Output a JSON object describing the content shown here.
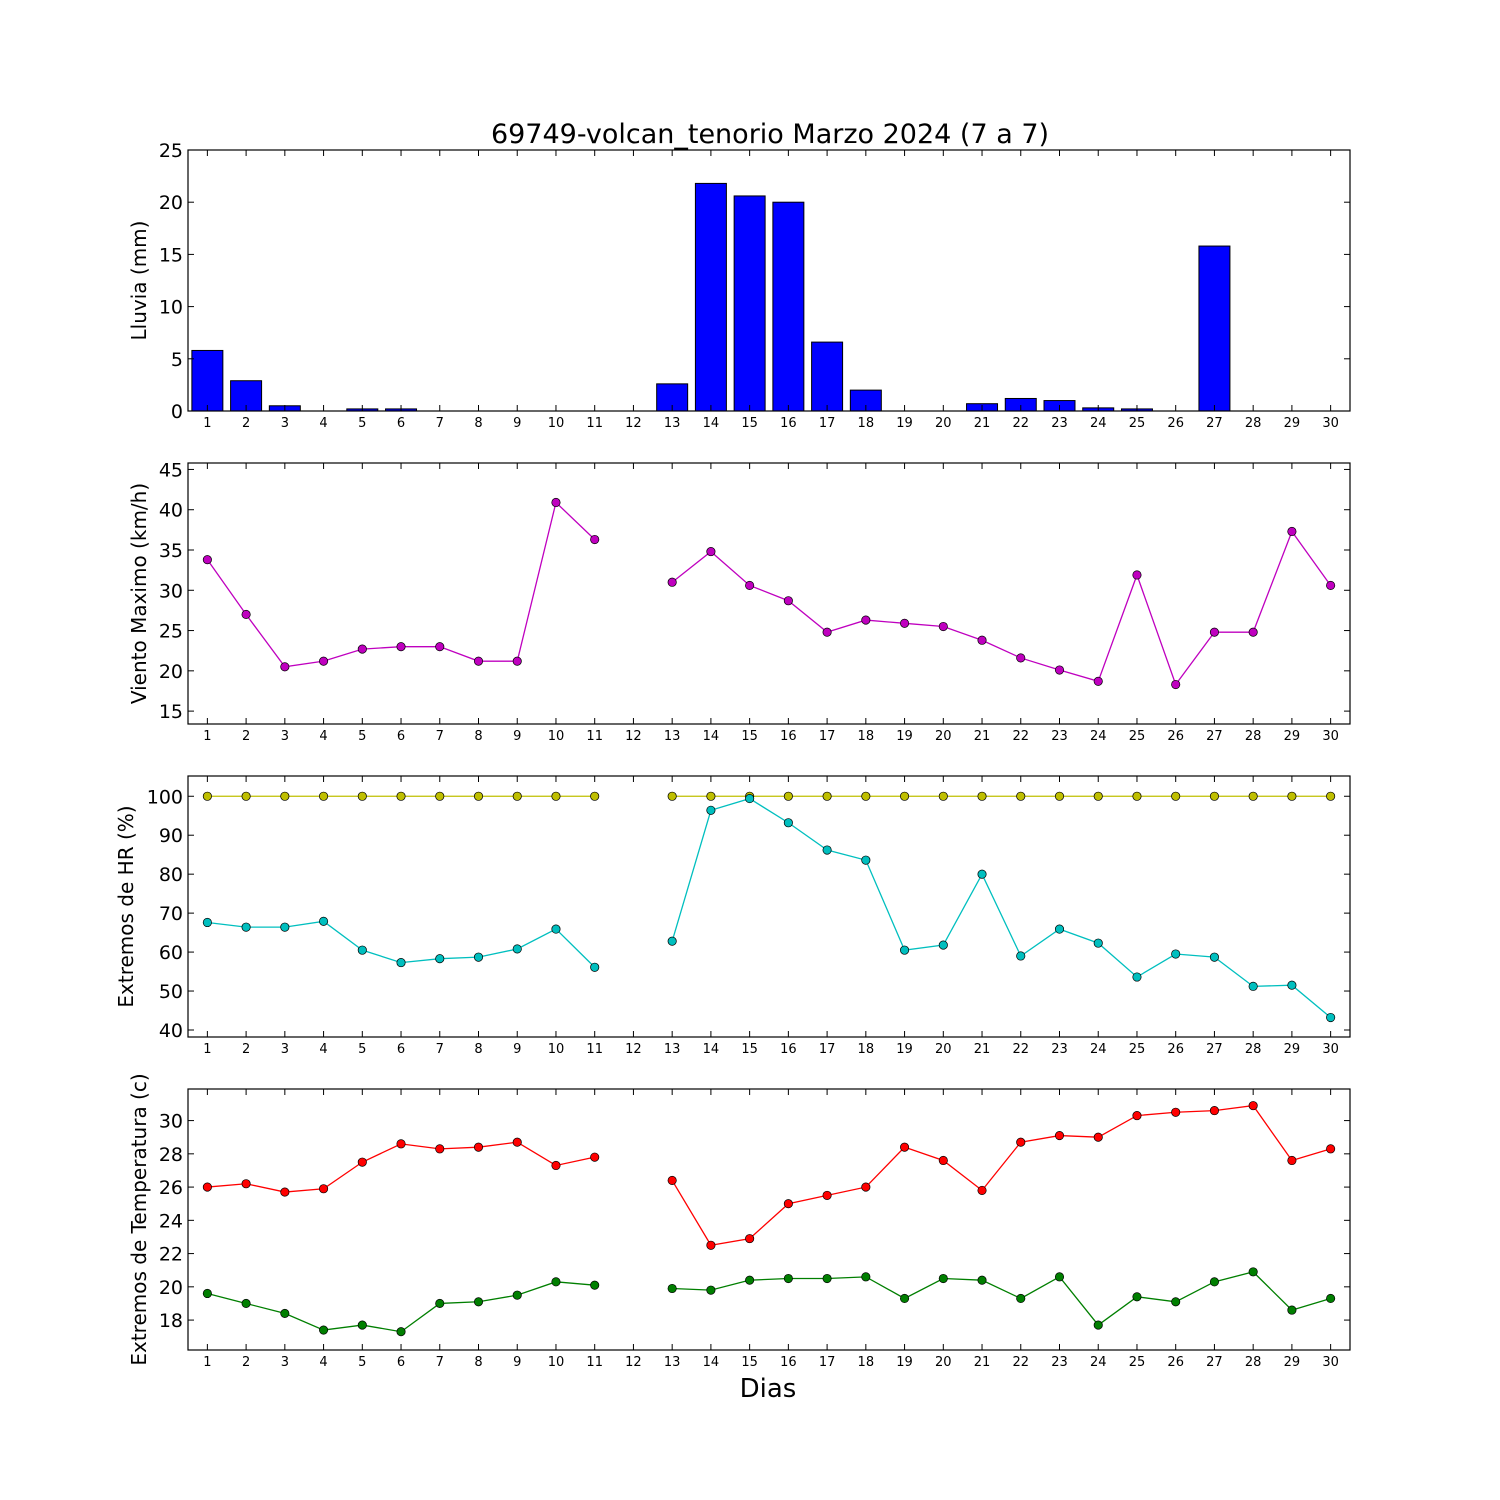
{
  "title": "69749-volcan_tenorio Marzo 2024  (7 a 7)",
  "xlabel": "Dias",
  "chart_data": [
    {
      "type": "bar",
      "ylabel": "Lluvia (mm)",
      "ylim": [
        0,
        25
      ],
      "yticks": [
        0,
        5,
        10,
        15,
        20,
        25
      ],
      "x": [
        1,
        2,
        3,
        4,
        5,
        6,
        7,
        8,
        9,
        10,
        11,
        12,
        13,
        14,
        15,
        16,
        17,
        18,
        19,
        20,
        21,
        22,
        23,
        24,
        25,
        26,
        27,
        28,
        29,
        30
      ],
      "series": [
        {
          "color": "#0000ff",
          "values": [
            5.8,
            2.9,
            0.5,
            0,
            0.2,
            0.2,
            0,
            0,
            0,
            0,
            0,
            0,
            2.6,
            21.8,
            20.6,
            20.0,
            6.6,
            2.0,
            0,
            0,
            0.7,
            1.2,
            1.0,
            0.3,
            0.2,
            0,
            15.8,
            0,
            0,
            0
          ]
        }
      ]
    },
    {
      "type": "line",
      "ylabel": "Viento Maximo (km/h)",
      "ylim": [
        13.4,
        45.8
      ],
      "yticks": [
        15,
        20,
        25,
        30,
        35,
        40,
        45
      ],
      "x": [
        1,
        2,
        3,
        4,
        5,
        6,
        7,
        8,
        9,
        10,
        11,
        12,
        13,
        14,
        15,
        16,
        17,
        18,
        19,
        20,
        21,
        22,
        23,
        24,
        25,
        26,
        27,
        28,
        29,
        30
      ],
      "series": [
        {
          "color": "#bf00bf",
          "values": [
            33.8,
            27.0,
            20.5,
            21.2,
            22.7,
            23.0,
            23.0,
            21.2,
            21.2,
            40.9,
            36.3,
            null,
            31.0,
            34.8,
            30.6,
            28.7,
            24.8,
            26.3,
            25.9,
            25.5,
            23.8,
            21.6,
            20.1,
            18.7,
            31.9,
            18.3,
            24.8,
            24.8,
            37.3,
            30.6
          ]
        }
      ]
    },
    {
      "type": "line",
      "ylabel": "Extremos de HR (%)",
      "ylim": [
        38.2,
        105.2
      ],
      "yticks": [
        40,
        50,
        60,
        70,
        80,
        90,
        100
      ],
      "x": [
        1,
        2,
        3,
        4,
        5,
        6,
        7,
        8,
        9,
        10,
        11,
        12,
        13,
        14,
        15,
        16,
        17,
        18,
        19,
        20,
        21,
        22,
        23,
        24,
        25,
        26,
        27,
        28,
        29,
        30
      ],
      "series": [
        {
          "color": "#bfbf00",
          "values": [
            100,
            100,
            100,
            100,
            100,
            100,
            100,
            100,
            100,
            100,
            100,
            null,
            100,
            100,
            100,
            100,
            100,
            100,
            100,
            100,
            100,
            100,
            100,
            100,
            100,
            100,
            100,
            100,
            100,
            100
          ]
        },
        {
          "color": "#00bfbf",
          "values": [
            67.6,
            66.4,
            66.4,
            67.9,
            60.5,
            57.3,
            58.3,
            58.7,
            60.8,
            65.9,
            56.1,
            null,
            62.8,
            96.4,
            99.4,
            93.2,
            86.2,
            83.6,
            60.5,
            61.8,
            80.0,
            59.0,
            65.9,
            62.3,
            53.6,
            59.5,
            58.7,
            51.2,
            51.5,
            43.2
          ]
        }
      ]
    },
    {
      "type": "line",
      "ylabel": "Extremos de Temperatura (c)",
      "ylim": [
        16.2,
        31.9
      ],
      "yticks": [
        18,
        20,
        22,
        24,
        26,
        28,
        30
      ],
      "x": [
        1,
        2,
        3,
        4,
        5,
        6,
        7,
        8,
        9,
        10,
        11,
        12,
        13,
        14,
        15,
        16,
        17,
        18,
        19,
        20,
        21,
        22,
        23,
        24,
        25,
        26,
        27,
        28,
        29,
        30
      ],
      "series": [
        {
          "color": "#ff0000",
          "values": [
            26.0,
            26.2,
            25.7,
            25.9,
            27.5,
            28.6,
            28.3,
            28.4,
            28.7,
            27.3,
            27.8,
            null,
            26.4,
            22.5,
            22.9,
            25.0,
            25.5,
            26.0,
            28.4,
            27.6,
            25.8,
            28.7,
            29.1,
            29.0,
            30.3,
            30.5,
            30.6,
            30.9,
            27.6,
            28.3
          ]
        },
        {
          "color": "#007f00",
          "values": [
            19.6,
            19.0,
            18.4,
            17.4,
            17.7,
            17.3,
            19.0,
            19.1,
            19.5,
            20.3,
            20.1,
            null,
            19.9,
            19.8,
            20.4,
            20.5,
            20.5,
            20.6,
            19.3,
            20.5,
            20.4,
            19.3,
            20.6,
            17.7,
            19.4,
            19.1,
            20.3,
            20.9,
            18.6,
            19.3
          ]
        }
      ]
    }
  ]
}
